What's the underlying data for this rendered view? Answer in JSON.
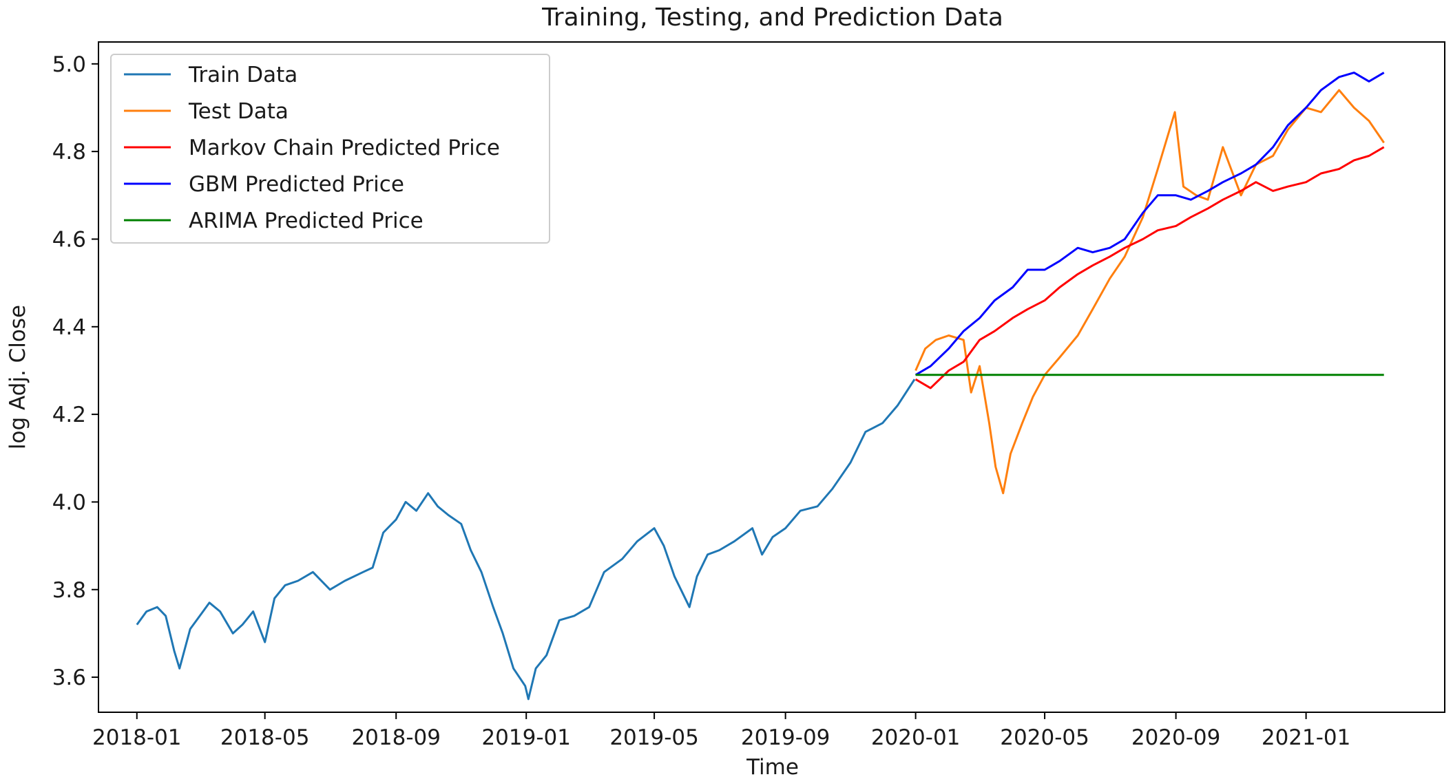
{
  "chart_data": {
    "type": "line",
    "title": "Training, Testing, and Prediction Data",
    "xlabel": "Time",
    "ylabel": "log Adj. Close",
    "xlim": [
      "2017-11-26",
      "2021-05-11"
    ],
    "ylim": [
      3.52,
      5.05
    ],
    "xticks": [
      "2018-01",
      "2018-05",
      "2018-09",
      "2019-01",
      "2019-05",
      "2019-09",
      "2020-01",
      "2020-05",
      "2020-09",
      "2021-01"
    ],
    "yticks": [
      "3.6",
      "3.8",
      "4.0",
      "4.2",
      "4.4",
      "4.6",
      "4.8",
      "5.0"
    ],
    "grid": false,
    "legend": "top-left",
    "series": [
      {
        "name": "Train Data",
        "color": "#1f77b4",
        "points": [
          [
            "2018-01-01",
            3.72
          ],
          [
            "2018-01-10",
            3.75
          ],
          [
            "2018-01-20",
            3.76
          ],
          [
            "2018-01-28",
            3.74
          ],
          [
            "2018-02-05",
            3.66
          ],
          [
            "2018-02-10",
            3.62
          ],
          [
            "2018-02-20",
            3.71
          ],
          [
            "2018-03-01",
            3.74
          ],
          [
            "2018-03-10",
            3.77
          ],
          [
            "2018-03-20",
            3.75
          ],
          [
            "2018-04-01",
            3.7
          ],
          [
            "2018-04-10",
            3.72
          ],
          [
            "2018-04-20",
            3.75
          ],
          [
            "2018-05-01",
            3.68
          ],
          [
            "2018-05-10",
            3.78
          ],
          [
            "2018-05-20",
            3.81
          ],
          [
            "2018-06-01",
            3.82
          ],
          [
            "2018-06-15",
            3.84
          ],
          [
            "2018-07-01",
            3.8
          ],
          [
            "2018-07-15",
            3.82
          ],
          [
            "2018-08-01",
            3.84
          ],
          [
            "2018-08-10",
            3.85
          ],
          [
            "2018-08-20",
            3.93
          ],
          [
            "2018-09-01",
            3.96
          ],
          [
            "2018-09-10",
            4.0
          ],
          [
            "2018-09-20",
            3.98
          ],
          [
            "2018-10-01",
            4.02
          ],
          [
            "2018-10-10",
            3.99
          ],
          [
            "2018-10-20",
            3.97
          ],
          [
            "2018-11-01",
            3.95
          ],
          [
            "2018-11-10",
            3.89
          ],
          [
            "2018-11-20",
            3.84
          ],
          [
            "2018-12-01",
            3.76
          ],
          [
            "2018-12-10",
            3.7
          ],
          [
            "2018-12-20",
            3.62
          ],
          [
            "2018-12-31",
            3.58
          ],
          [
            "2019-01-03",
            3.55
          ],
          [
            "2019-01-10",
            3.62
          ],
          [
            "2019-01-20",
            3.65
          ],
          [
            "2019-02-01",
            3.73
          ],
          [
            "2019-02-15",
            3.74
          ],
          [
            "2019-03-01",
            3.76
          ],
          [
            "2019-03-15",
            3.84
          ],
          [
            "2019-04-01",
            3.87
          ],
          [
            "2019-04-15",
            3.91
          ],
          [
            "2019-05-01",
            3.94
          ],
          [
            "2019-05-10",
            3.9
          ],
          [
            "2019-05-20",
            3.83
          ],
          [
            "2019-06-03",
            3.76
          ],
          [
            "2019-06-10",
            3.83
          ],
          [
            "2019-06-20",
            3.88
          ],
          [
            "2019-07-01",
            3.89
          ],
          [
            "2019-07-15",
            3.91
          ],
          [
            "2019-08-01",
            3.94
          ],
          [
            "2019-08-10",
            3.88
          ],
          [
            "2019-08-20",
            3.92
          ],
          [
            "2019-09-01",
            3.94
          ],
          [
            "2019-09-15",
            3.98
          ],
          [
            "2019-10-01",
            3.99
          ],
          [
            "2019-10-15",
            4.03
          ],
          [
            "2019-11-01",
            4.09
          ],
          [
            "2019-11-15",
            4.16
          ],
          [
            "2019-12-01",
            4.18
          ],
          [
            "2019-12-15",
            4.22
          ],
          [
            "2019-12-31",
            4.28
          ]
        ]
      },
      {
        "name": "Test Data",
        "color": "#ff7f0e",
        "points": [
          [
            "2020-01-01",
            4.3
          ],
          [
            "2020-01-10",
            4.35
          ],
          [
            "2020-01-20",
            4.37
          ],
          [
            "2020-02-01",
            4.38
          ],
          [
            "2020-02-15",
            4.37
          ],
          [
            "2020-02-22",
            4.25
          ],
          [
            "2020-03-01",
            4.31
          ],
          [
            "2020-03-10",
            4.18
          ],
          [
            "2020-03-16",
            4.08
          ],
          [
            "2020-03-23",
            4.02
          ],
          [
            "2020-03-30",
            4.11
          ],
          [
            "2020-04-10",
            4.18
          ],
          [
            "2020-04-20",
            4.24
          ],
          [
            "2020-05-01",
            4.29
          ],
          [
            "2020-05-15",
            4.33
          ],
          [
            "2020-06-01",
            4.38
          ],
          [
            "2020-06-15",
            4.44
          ],
          [
            "2020-07-01",
            4.51
          ],
          [
            "2020-07-15",
            4.56
          ],
          [
            "2020-08-01",
            4.65
          ],
          [
            "2020-08-15",
            4.76
          ],
          [
            "2020-08-31",
            4.89
          ],
          [
            "2020-09-08",
            4.72
          ],
          [
            "2020-09-20",
            4.7
          ],
          [
            "2020-10-01",
            4.69
          ],
          [
            "2020-10-15",
            4.81
          ],
          [
            "2020-11-01",
            4.7
          ],
          [
            "2020-11-15",
            4.77
          ],
          [
            "2020-12-01",
            4.79
          ],
          [
            "2020-12-15",
            4.85
          ],
          [
            "2021-01-01",
            4.9
          ],
          [
            "2021-01-15",
            4.89
          ],
          [
            "2021-02-01",
            4.94
          ],
          [
            "2021-02-15",
            4.9
          ],
          [
            "2021-03-01",
            4.87
          ],
          [
            "2021-03-15",
            4.82
          ]
        ]
      },
      {
        "name": "Markov Chain Predicted Price",
        "color": "#ff0000",
        "points": [
          [
            "2020-01-01",
            4.28
          ],
          [
            "2020-01-15",
            4.26
          ],
          [
            "2020-02-01",
            4.3
          ],
          [
            "2020-02-15",
            4.32
          ],
          [
            "2020-03-01",
            4.37
          ],
          [
            "2020-03-15",
            4.39
          ],
          [
            "2020-04-01",
            4.42
          ],
          [
            "2020-04-15",
            4.44
          ],
          [
            "2020-05-01",
            4.46
          ],
          [
            "2020-05-15",
            4.49
          ],
          [
            "2020-06-01",
            4.52
          ],
          [
            "2020-06-15",
            4.54
          ],
          [
            "2020-07-01",
            4.56
          ],
          [
            "2020-07-15",
            4.58
          ],
          [
            "2020-08-01",
            4.6
          ],
          [
            "2020-08-15",
            4.62
          ],
          [
            "2020-09-01",
            4.63
          ],
          [
            "2020-09-15",
            4.65
          ],
          [
            "2020-10-01",
            4.67
          ],
          [
            "2020-10-15",
            4.69
          ],
          [
            "2020-11-01",
            4.71
          ],
          [
            "2020-11-15",
            4.73
          ],
          [
            "2020-12-01",
            4.71
          ],
          [
            "2020-12-15",
            4.72
          ],
          [
            "2021-01-01",
            4.73
          ],
          [
            "2021-01-15",
            4.75
          ],
          [
            "2021-02-01",
            4.76
          ],
          [
            "2021-02-15",
            4.78
          ],
          [
            "2021-03-01",
            4.79
          ],
          [
            "2021-03-15",
            4.81
          ]
        ]
      },
      {
        "name": "GBM Predicted Price",
        "color": "#0000ff",
        "points": [
          [
            "2020-01-01",
            4.29
          ],
          [
            "2020-01-15",
            4.31
          ],
          [
            "2020-02-01",
            4.35
          ],
          [
            "2020-02-15",
            4.39
          ],
          [
            "2020-03-01",
            4.42
          ],
          [
            "2020-03-15",
            4.46
          ],
          [
            "2020-04-01",
            4.49
          ],
          [
            "2020-04-15",
            4.53
          ],
          [
            "2020-05-01",
            4.53
          ],
          [
            "2020-05-15",
            4.55
          ],
          [
            "2020-06-01",
            4.58
          ],
          [
            "2020-06-15",
            4.57
          ],
          [
            "2020-07-01",
            4.58
          ],
          [
            "2020-07-15",
            4.6
          ],
          [
            "2020-08-01",
            4.66
          ],
          [
            "2020-08-15",
            4.7
          ],
          [
            "2020-09-01",
            4.7
          ],
          [
            "2020-09-15",
            4.69
          ],
          [
            "2020-10-01",
            4.71
          ],
          [
            "2020-10-15",
            4.73
          ],
          [
            "2020-11-01",
            4.75
          ],
          [
            "2020-11-15",
            4.77
          ],
          [
            "2020-12-01",
            4.81
          ],
          [
            "2020-12-15",
            4.86
          ],
          [
            "2021-01-01",
            4.9
          ],
          [
            "2021-01-15",
            4.94
          ],
          [
            "2021-02-01",
            4.97
          ],
          [
            "2021-02-15",
            4.98
          ],
          [
            "2021-03-01",
            4.96
          ],
          [
            "2021-03-15",
            4.98
          ]
        ]
      },
      {
        "name": "ARIMA Predicted Price",
        "color": "#008000",
        "points": [
          [
            "2020-01-01",
            4.29
          ],
          [
            "2021-03-15",
            4.29
          ]
        ]
      }
    ]
  }
}
